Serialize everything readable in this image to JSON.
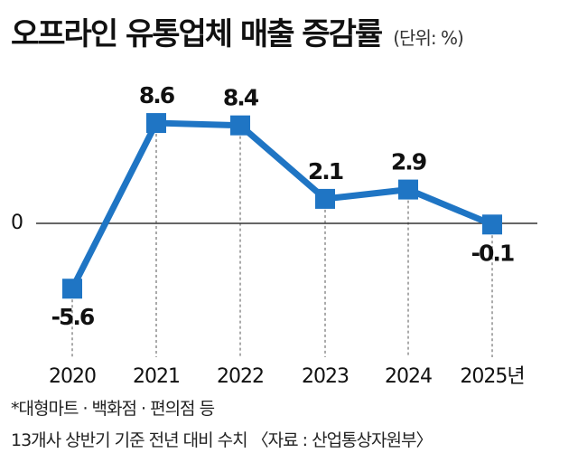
{
  "title": "오프라인 유통업체 매출 증감률",
  "unit": "(단위: %)",
  "colors": {
    "line": "#1f75c4",
    "axis": "#333333",
    "dashed": "#555555",
    "label": "#111111"
  },
  "chart_data": {
    "type": "line",
    "categories": [
      "2020",
      "2021",
      "2022",
      "2023",
      "2024",
      "2025년"
    ],
    "values": [
      -5.6,
      8.6,
      8.4,
      2.1,
      2.9,
      -0.1
    ],
    "value_labels": [
      "-5.6",
      "8.6",
      "8.4",
      "2.1",
      "2.9",
      "-0.1"
    ],
    "zero_label": "0",
    "ylim": [
      -7,
      10
    ],
    "grid": false,
    "marker": "square"
  },
  "footnotes": {
    "line1": "*대형마트 · 백화점 · 편의점 등",
    "line2": "13개사 상반기 기준 전년 대비 수치 〈자료 : 산업통상자원부〉"
  }
}
